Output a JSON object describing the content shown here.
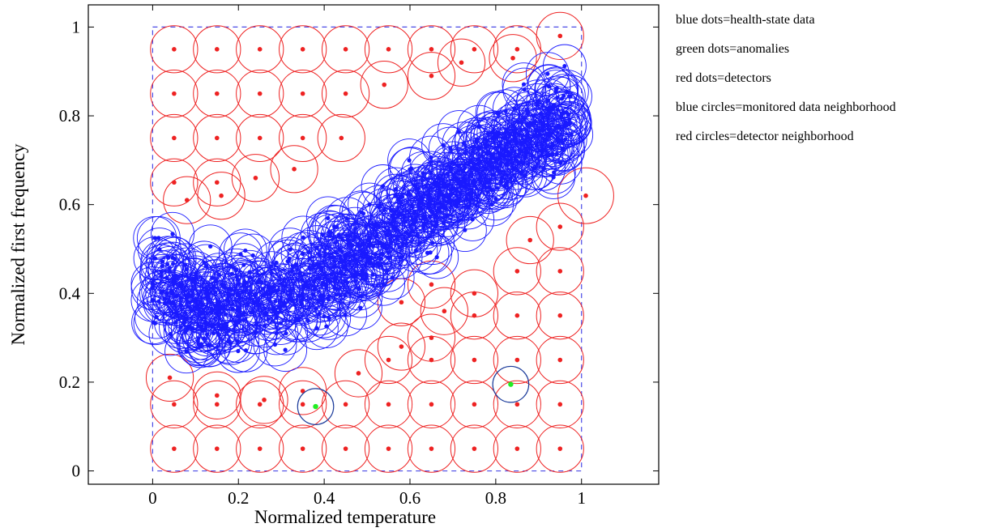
{
  "chart_data": {
    "type": "scatter",
    "xlabel": "Normalized temperature",
    "ylabel": "Normalized first frequency",
    "xlim": [
      -0.15,
      1.18
    ],
    "ylim": [
      -0.03,
      1.05
    ],
    "x_ticks": [
      0,
      0.2,
      0.4,
      0.6,
      0.8,
      1
    ],
    "x_tick_labels": [
      "0",
      "0.2",
      "0.4",
      "0.6",
      "0.8",
      "1"
    ],
    "y_ticks": [
      0,
      0.2,
      0.4,
      0.6,
      0.8,
      1
    ],
    "y_tick_labels": [
      "0",
      "0.2",
      "0.4",
      "0.6",
      "0.8",
      "1"
    ],
    "grid": false,
    "legend_placement": "right-outside",
    "legend": [
      "blue dots=health-state data",
      "green dots=anomalies",
      "red dots=detectors",
      "blue circles=monitored data neighborhood",
      "red circles=detector neighborhood"
    ],
    "boundary": {
      "x": [
        0,
        1
      ],
      "y": [
        0,
        1
      ],
      "style": "dashed",
      "color": "#4a4ae6"
    },
    "colors": {
      "health": "#1a1aff",
      "anomaly": "#22ee22",
      "detector": "#ee2222",
      "anomaly_circle": "#1a3a9a"
    },
    "health_radius": 0.05,
    "health_band": {
      "x_range": [
        0.0,
        0.98
      ],
      "line": [
        [
          0.0,
          0.43
        ],
        [
          0.15,
          0.37
        ],
        [
          0.3,
          0.38
        ],
        [
          0.55,
          0.53
        ],
        [
          0.8,
          0.7
        ],
        [
          0.98,
          0.81
        ]
      ],
      "spread": 0.05,
      "count": 700
    },
    "detectors": [
      {
        "x": 0.05,
        "y": 0.95,
        "r": 0.055
      },
      {
        "x": 0.15,
        "y": 0.95,
        "r": 0.055
      },
      {
        "x": 0.25,
        "y": 0.95,
        "r": 0.055
      },
      {
        "x": 0.35,
        "y": 0.95,
        "r": 0.055
      },
      {
        "x": 0.45,
        "y": 0.95,
        "r": 0.055
      },
      {
        "x": 0.55,
        "y": 0.95,
        "r": 0.055
      },
      {
        "x": 0.65,
        "y": 0.95,
        "r": 0.055
      },
      {
        "x": 0.75,
        "y": 0.95,
        "r": 0.055
      },
      {
        "x": 0.85,
        "y": 0.95,
        "r": 0.055
      },
      {
        "x": 0.95,
        "y": 0.98,
        "r": 0.055
      },
      {
        "x": 0.05,
        "y": 0.85,
        "r": 0.055
      },
      {
        "x": 0.15,
        "y": 0.85,
        "r": 0.055
      },
      {
        "x": 0.25,
        "y": 0.85,
        "r": 0.055
      },
      {
        "x": 0.35,
        "y": 0.85,
        "r": 0.055
      },
      {
        "x": 0.45,
        "y": 0.85,
        "r": 0.055
      },
      {
        "x": 0.54,
        "y": 0.87,
        "r": 0.055
      },
      {
        "x": 0.65,
        "y": 0.89,
        "r": 0.055
      },
      {
        "x": 0.72,
        "y": 0.92,
        "r": 0.055
      },
      {
        "x": 0.84,
        "y": 0.93,
        "r": 0.055
      },
      {
        "x": 0.05,
        "y": 0.75,
        "r": 0.055
      },
      {
        "x": 0.15,
        "y": 0.75,
        "r": 0.055
      },
      {
        "x": 0.25,
        "y": 0.75,
        "r": 0.055
      },
      {
        "x": 0.35,
        "y": 0.75,
        "r": 0.055
      },
      {
        "x": 0.44,
        "y": 0.75,
        "r": 0.055
      },
      {
        "x": 0.05,
        "y": 0.65,
        "r": 0.055
      },
      {
        "x": 0.15,
        "y": 0.65,
        "r": 0.055
      },
      {
        "x": 0.24,
        "y": 0.66,
        "r": 0.055
      },
      {
        "x": 0.33,
        "y": 0.68,
        "r": 0.055
      },
      {
        "x": 0.08,
        "y": 0.61,
        "r": 0.055
      },
      {
        "x": 0.16,
        "y": 0.62,
        "r": 0.055
      },
      {
        "x": 1.01,
        "y": 0.62,
        "r": 0.065
      },
      {
        "x": 0.95,
        "y": 0.55,
        "r": 0.055
      },
      {
        "x": 0.88,
        "y": 0.52,
        "r": 0.055
      },
      {
        "x": 0.95,
        "y": 0.45,
        "r": 0.055
      },
      {
        "x": 0.85,
        "y": 0.45,
        "r": 0.055
      },
      {
        "x": 0.75,
        "y": 0.4,
        "r": 0.055
      },
      {
        "x": 0.65,
        "y": 0.42,
        "r": 0.055
      },
      {
        "x": 0.58,
        "y": 0.38,
        "r": 0.055
      },
      {
        "x": 0.68,
        "y": 0.36,
        "r": 0.055
      },
      {
        "x": 0.95,
        "y": 0.35,
        "r": 0.055
      },
      {
        "x": 0.85,
        "y": 0.35,
        "r": 0.055
      },
      {
        "x": 0.75,
        "y": 0.35,
        "r": 0.055
      },
      {
        "x": 0.65,
        "y": 0.3,
        "r": 0.055
      },
      {
        "x": 0.58,
        "y": 0.28,
        "r": 0.055
      },
      {
        "x": 0.95,
        "y": 0.25,
        "r": 0.055
      },
      {
        "x": 0.85,
        "y": 0.25,
        "r": 0.055
      },
      {
        "x": 0.75,
        "y": 0.25,
        "r": 0.055
      },
      {
        "x": 0.65,
        "y": 0.25,
        "r": 0.055
      },
      {
        "x": 0.55,
        "y": 0.25,
        "r": 0.055
      },
      {
        "x": 0.48,
        "y": 0.22,
        "r": 0.055
      },
      {
        "x": 0.04,
        "y": 0.21,
        "r": 0.055
      },
      {
        "x": 0.05,
        "y": 0.15,
        "r": 0.055
      },
      {
        "x": 0.15,
        "y": 0.15,
        "r": 0.055
      },
      {
        "x": 0.25,
        "y": 0.15,
        "r": 0.055
      },
      {
        "x": 0.35,
        "y": 0.15,
        "r": 0.055
      },
      {
        "x": 0.45,
        "y": 0.15,
        "r": 0.055
      },
      {
        "x": 0.55,
        "y": 0.15,
        "r": 0.055
      },
      {
        "x": 0.65,
        "y": 0.15,
        "r": 0.055
      },
      {
        "x": 0.75,
        "y": 0.15,
        "r": 0.055
      },
      {
        "x": 0.85,
        "y": 0.15,
        "r": 0.055
      },
      {
        "x": 0.95,
        "y": 0.15,
        "r": 0.055
      },
      {
        "x": 0.15,
        "y": 0.17,
        "r": 0.055
      },
      {
        "x": 0.26,
        "y": 0.16,
        "r": 0.055
      },
      {
        "x": 0.35,
        "y": 0.18,
        "r": 0.055
      },
      {
        "x": 0.05,
        "y": 0.05,
        "r": 0.055
      },
      {
        "x": 0.15,
        "y": 0.05,
        "r": 0.055
      },
      {
        "x": 0.25,
        "y": 0.05,
        "r": 0.055
      },
      {
        "x": 0.35,
        "y": 0.05,
        "r": 0.055
      },
      {
        "x": 0.45,
        "y": 0.05,
        "r": 0.055
      },
      {
        "x": 0.55,
        "y": 0.05,
        "r": 0.055
      },
      {
        "x": 0.65,
        "y": 0.05,
        "r": 0.055
      },
      {
        "x": 0.75,
        "y": 0.05,
        "r": 0.055
      },
      {
        "x": 0.85,
        "y": 0.05,
        "r": 0.055
      },
      {
        "x": 0.95,
        "y": 0.05,
        "r": 0.055
      }
    ],
    "anomalies": [
      {
        "x": 0.38,
        "y": 0.145,
        "r": 0.042
      },
      {
        "x": 0.835,
        "y": 0.195,
        "r": 0.042
      }
    ]
  }
}
